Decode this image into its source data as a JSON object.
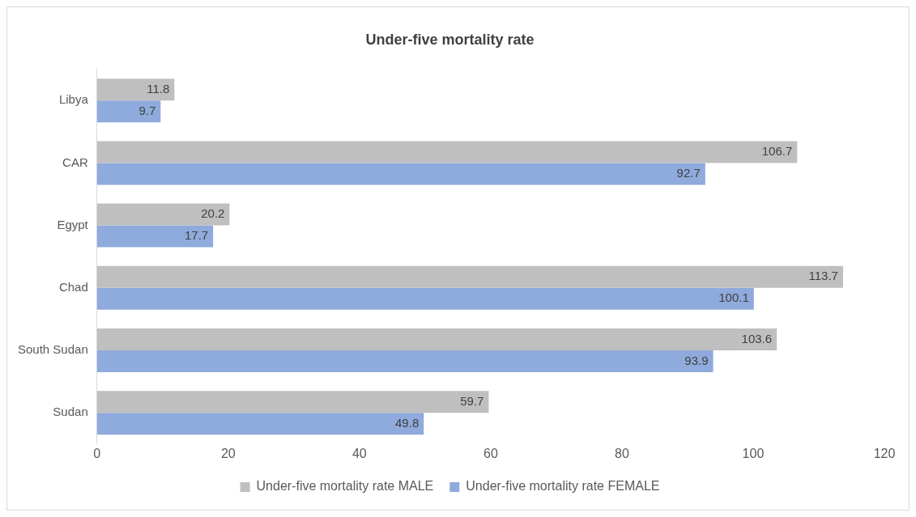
{
  "chart_data": {
    "type": "bar",
    "orientation": "horizontal",
    "title": "Under-five mortality rate",
    "categories": [
      "Libya",
      "CAR",
      "Egypt",
      "Chad",
      "South Sudan",
      "Sudan"
    ],
    "series": [
      {
        "name": "Under-five mortality rate MALE",
        "color": "#bfbfbf",
        "values": [
          11.8,
          106.7,
          20.2,
          113.7,
          103.6,
          59.7
        ]
      },
      {
        "name": "Under-five mortality rate FEMALE",
        "color": "#8faadc",
        "values": [
          9.7,
          92.7,
          17.7,
          100.1,
          93.9,
          49.8
        ]
      }
    ],
    "xlim": [
      0,
      120
    ],
    "xticks": [
      0,
      20,
      40,
      60,
      80,
      100,
      120
    ],
    "grid": false,
    "legend": "bottom",
    "data_labels": true
  }
}
